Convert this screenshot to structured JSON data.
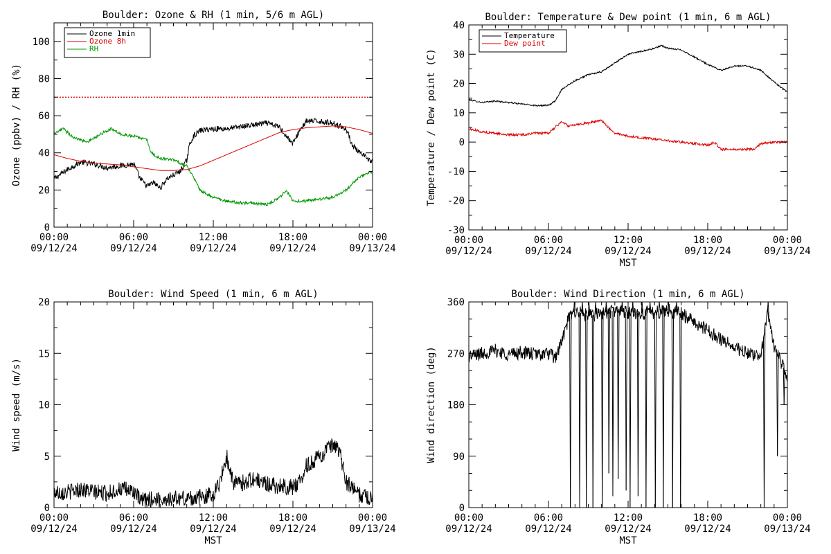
{
  "chart_data": [
    {
      "id": "ozone-rh",
      "type": "line",
      "title": "Boulder: Ozone & RH (1 min, 5/6 m AGL)",
      "xlabel": "",
      "ylabel": "Ozone (ppbv) / RH (%)",
      "xlim": [
        0,
        24
      ],
      "ylim": [
        0,
        110
      ],
      "yticks": [
        0,
        20,
        40,
        60,
        80,
        100
      ],
      "xticks": [
        0,
        6,
        12,
        18,
        24
      ],
      "xticklabels": [
        [
          "00:00",
          "09/12/24"
        ],
        [
          "06:00",
          "09/12/24"
        ],
        [
          "12:00",
          "09/12/24"
        ],
        [
          "18:00",
          "09/12/24"
        ],
        [
          "00:00",
          "09/13/24"
        ]
      ],
      "legend_position": "top-left",
      "reference_line": {
        "y": 70,
        "color": "#dd0000",
        "style": "dotted"
      },
      "series": [
        {
          "name": "Ozone 1min",
          "color": "#000000",
          "noise": 1.5,
          "spikes": 0,
          "x": [
            0,
            1,
            2,
            3,
            4,
            5,
            6,
            6.5,
            7,
            7.5,
            8,
            8.5,
            9,
            9.5,
            10,
            10.2,
            10.5,
            11,
            12,
            13,
            14,
            15,
            16,
            17,
            17.5,
            18,
            18.5,
            19,
            20,
            21,
            22,
            22.5,
            23,
            24
          ],
          "y": [
            26,
            31,
            35,
            34,
            32,
            33,
            34,
            26,
            22,
            24,
            21,
            26,
            28,
            30,
            36,
            44,
            49,
            52,
            53,
            53,
            54,
            55,
            56,
            54,
            49,
            45,
            52,
            57,
            57,
            56,
            53,
            44,
            40,
            35
          ]
        },
        {
          "name": "Ozone 8h",
          "color": "#dd0000",
          "noise": 0,
          "spikes": 0,
          "x": [
            0,
            1,
            2,
            3,
            4,
            5,
            6,
            7,
            8,
            9,
            10,
            11,
            12,
            13,
            14,
            15,
            16,
            17,
            18,
            19,
            20,
            21,
            22,
            23,
            24
          ],
          "y": [
            39,
            37,
            35.5,
            34.5,
            34,
            33.5,
            32.5,
            31.5,
            30.5,
            30.5,
            31,
            33,
            36,
            39,
            42,
            45,
            48,
            51,
            52.5,
            53.5,
            54,
            54.5,
            54,
            52.5,
            50.5
          ]
        },
        {
          "name": "RH",
          "color": "#009900",
          "noise": 0.8,
          "spikes": 0,
          "x": [
            0,
            0.7,
            1.5,
            2.5,
            3.5,
            4.3,
            5,
            6,
            7,
            7.3,
            8,
            9,
            10,
            10.5,
            11,
            12,
            13,
            14,
            15,
            16,
            17,
            17.5,
            18,
            19,
            20,
            21,
            22,
            23,
            24
          ],
          "y": [
            50,
            53,
            48,
            46,
            50,
            53,
            50,
            49,
            47,
            40,
            37,
            36,
            33,
            27,
            20,
            16,
            14,
            13,
            13,
            12,
            16,
            20,
            14,
            14,
            15,
            16,
            20,
            27,
            30
          ]
        }
      ]
    },
    {
      "id": "temp-dew",
      "type": "line",
      "title": "Boulder: Temperature & Dew point (1 min, 6 m AGL)",
      "xlabel": "MST",
      "ylabel": "Temperature / Dew point (C)",
      "xlim": [
        0,
        24
      ],
      "ylim": [
        -30,
        40
      ],
      "yticks": [
        -30,
        -20,
        -10,
        0,
        10,
        20,
        30,
        40
      ],
      "xticks": [
        0,
        6,
        12,
        18,
        24
      ],
      "xticklabels": [
        [
          "00:00",
          "09/12/24"
        ],
        [
          "06:00",
          "09/12/24"
        ],
        [
          "12:00",
          "09/12/24"
        ],
        [
          "18:00",
          "09/12/24"
        ],
        [
          "00:00",
          "09/13/24"
        ]
      ],
      "legend_position": "top-left",
      "series": [
        {
          "name": "Temperature",
          "color": "#000000",
          "noise": 0.25,
          "spikes": 0,
          "x": [
            0,
            1,
            2,
            3,
            4,
            5,
            6,
            6.5,
            7,
            8,
            9,
            10,
            11,
            12,
            13,
            14,
            14.5,
            15,
            16,
            17,
            18,
            19,
            20,
            21,
            22,
            23,
            24
          ],
          "y": [
            14.5,
            13.5,
            14,
            13.5,
            13,
            12.5,
            12.5,
            14,
            18,
            21,
            23,
            24,
            27,
            30,
            31,
            32,
            33,
            32,
            31.5,
            29,
            26.5,
            24.5,
            26,
            26,
            24.5,
            20.5,
            17
          ]
        },
        {
          "name": "Dew point",
          "color": "#dd0000",
          "noise": 0.4,
          "spikes": 0,
          "x": [
            0,
            1,
            2,
            3,
            4,
            5,
            6,
            6.5,
            7,
            7.5,
            8,
            9,
            10,
            10.5,
            11,
            12,
            13,
            14,
            15,
            16,
            17,
            18,
            18.5,
            19,
            20,
            21,
            21.5,
            22,
            23,
            24
          ],
          "y": [
            4.5,
            3.5,
            3,
            2.5,
            2.5,
            3,
            3,
            5,
            7,
            5.5,
            6,
            6.5,
            7.5,
            5,
            3,
            2,
            1.5,
            1,
            0.5,
            0,
            -0.5,
            -1,
            0,
            -2.5,
            -2.5,
            -2.5,
            -2.5,
            -0.5,
            0,
            0
          ]
        }
      ]
    },
    {
      "id": "wind-speed",
      "type": "line",
      "title": "Boulder: Wind Speed (1 min, 6 m AGL)",
      "xlabel": "MST",
      "ylabel": "Wind speed (m/s)",
      "xlim": [
        0,
        24
      ],
      "ylim": [
        0,
        20
      ],
      "yticks": [
        0,
        5,
        10,
        15,
        20
      ],
      "xticks": [
        0,
        6,
        12,
        18,
        24
      ],
      "xticklabels": [
        [
          "00:00",
          "09/12/24"
        ],
        [
          "06:00",
          "09/12/24"
        ],
        [
          "12:00",
          "09/12/24"
        ],
        [
          "18:00",
          "09/12/24"
        ],
        [
          "00:00",
          "09/13/24"
        ]
      ],
      "legend_position": "",
      "series": [
        {
          "name": "",
          "color": "#000000",
          "noise": 0.8,
          "spikes": 0,
          "x": [
            0,
            1,
            2,
            3,
            4,
            5,
            6,
            6.5,
            7,
            8,
            9,
            10,
            11,
            12,
            12.5,
            13,
            13.5,
            14,
            15,
            16,
            17,
            18,
            18.5,
            19,
            20,
            21,
            21.5,
            22,
            23,
            24
          ],
          "y": [
            1.5,
            1.5,
            1.8,
            1.5,
            1.4,
            1.8,
            1.6,
            0.6,
            0.8,
            0.8,
            0.9,
            0.9,
            1,
            1.3,
            2.5,
            5,
            2.5,
            2.3,
            2.8,
            2.3,
            2.1,
            2.0,
            2.5,
            4,
            5,
            6,
            5.5,
            2.5,
            1.2,
            1
          ]
        }
      ]
    },
    {
      "id": "wind-direction",
      "type": "line",
      "title": "Boulder: Wind Direction (1 min, 6 m AGL)",
      "xlabel": "MST",
      "ylabel": "Wind direction (deg)",
      "xlim": [
        0,
        24
      ],
      "ylim": [
        0,
        360
      ],
      "yticks": [
        0,
        90,
        180,
        270,
        360
      ],
      "xticks": [
        0,
        6,
        12,
        18,
        24
      ],
      "xticklabels": [
        [
          "00:00",
          "09/12/24"
        ],
        [
          "06:00",
          "09/12/24"
        ],
        [
          "12:00",
          "09/12/24"
        ],
        [
          "18:00",
          "09/12/24"
        ],
        [
          "00:00",
          "09/13/24"
        ]
      ],
      "legend_position": "",
      "series": [
        {
          "name": "",
          "color": "#000000",
          "noise": 12,
          "spikes": 0,
          "x": [
            0,
            1,
            2,
            3,
            4,
            5,
            6,
            6.5,
            7,
            7.5,
            8,
            9,
            10,
            11,
            12,
            13,
            14,
            15,
            16,
            17,
            18,
            19,
            20,
            21,
            21.5,
            22,
            22.5,
            23,
            24
          ],
          "y": [
            265,
            270,
            275,
            268,
            272,
            268,
            270,
            262,
            290,
            330,
            345,
            335,
            340,
            345,
            342,
            340,
            342,
            345,
            340,
            325,
            310,
            295,
            280,
            270,
            265,
            268,
            345,
            280,
            230
          ]
        }
      ],
      "wrap_events": [
        [
          7.6,
          0
        ],
        [
          7.9,
          360
        ],
        [
          8.3,
          0
        ],
        [
          8.5,
          360
        ],
        [
          8.8,
          0
        ],
        [
          9.0,
          360
        ],
        [
          9.3,
          0
        ],
        [
          9.5,
          360
        ],
        [
          10.0,
          0
        ],
        [
          10.3,
          360
        ],
        [
          10.5,
          60
        ],
        [
          10.8,
          20
        ],
        [
          11.2,
          50
        ],
        [
          11.5,
          360
        ],
        [
          11.8,
          30
        ],
        [
          12.1,
          0
        ],
        [
          12.3,
          360
        ],
        [
          12.7,
          20
        ],
        [
          13.0,
          360
        ],
        [
          13.3,
          0
        ],
        [
          13.6,
          360
        ],
        [
          14.0,
          0
        ],
        [
          14.3,
          360
        ],
        [
          14.6,
          0
        ],
        [
          15.0,
          360
        ],
        [
          15.3,
          0
        ],
        [
          15.6,
          360
        ],
        [
          15.9,
          0
        ],
        [
          22.2,
          0
        ],
        [
          22.5,
          360
        ],
        [
          23.2,
          90
        ],
        [
          23.7,
          180
        ]
      ]
    }
  ]
}
